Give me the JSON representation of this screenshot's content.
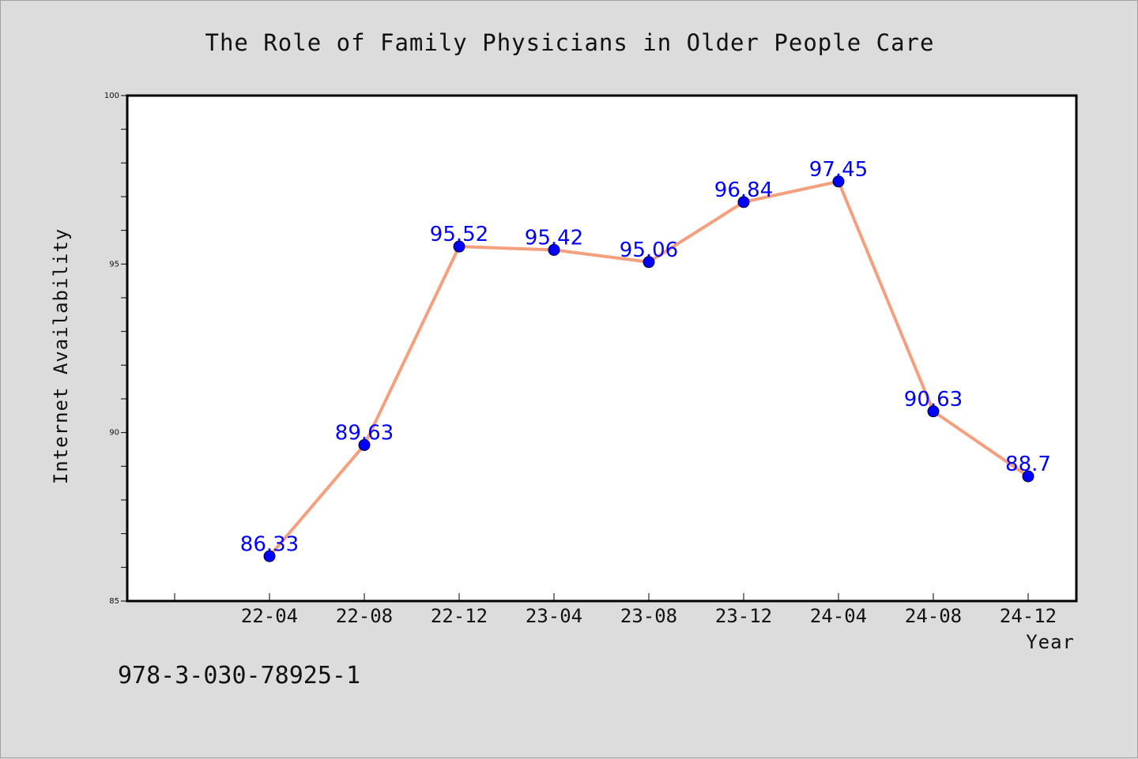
{
  "chart_data": {
    "type": "line",
    "title": "The Role of Family Physicians in Older People Care",
    "xlabel": "Year",
    "ylabel": "Internet Availability",
    "categories": [
      "22-04",
      "22-08",
      "22-12",
      "23-04",
      "23-08",
      "23-12",
      "24-04",
      "24-08",
      "24-12"
    ],
    "series": [
      {
        "values": [
          86.33,
          89.63,
          95.52,
          95.42,
          95.06,
          96.84,
          97.45,
          90.63,
          88.7
        ],
        "data_labels": [
          "86.33",
          "89.63",
          "95.52",
          "95.42",
          "95.06",
          "96.84",
          "97.45",
          "90.63",
          "88.7"
        ],
        "line_color": "#f4a07e",
        "marker_color": "#0000ff"
      }
    ],
    "ylim": [
      85,
      100
    ],
    "y_ticks": [
      85,
      90,
      95,
      100
    ],
    "y_tick_labels": [
      "85",
      "90",
      "95",
      "100"
    ],
    "grid": false,
    "legend": "none"
  },
  "footer_text": "978-3-030-78925-1",
  "colors": {
    "background": "#dcdcdc",
    "plot_background": "#ffffff",
    "line": "#f4a07e",
    "marker": "#0000ff",
    "data_label": "#0000ff"
  }
}
